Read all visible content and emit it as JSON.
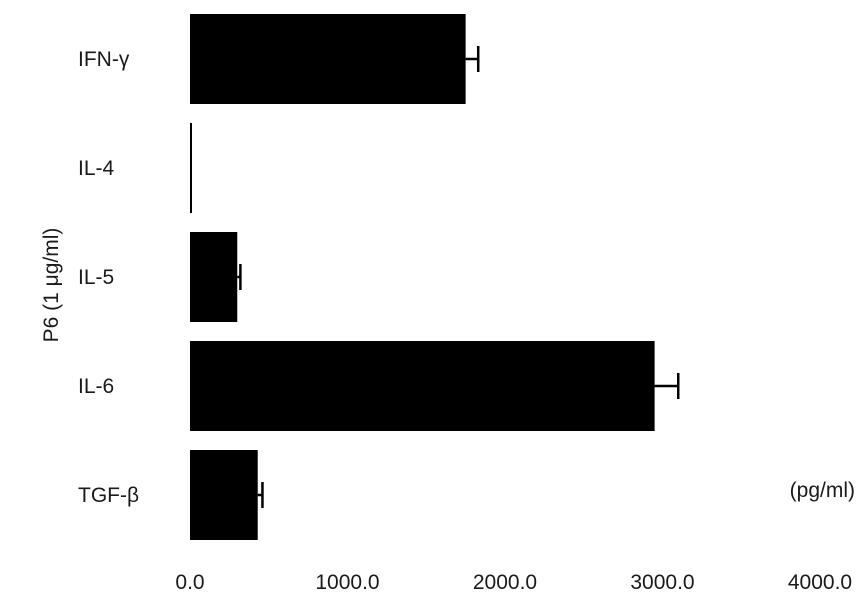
{
  "chart_data": {
    "type": "bar",
    "orientation": "horizontal",
    "categories": [
      "IFN-γ",
      "IL-4",
      "IL-5",
      "IL-6",
      "TGF-β"
    ],
    "values": [
      1750,
      5,
      300,
      2950,
      430
    ],
    "errors": [
      80,
      0,
      20,
      150,
      30
    ],
    "title": "",
    "xlabel": "",
    "ylabel": "P6 (1 μg/ml)",
    "unit_label": "(pg/ml)",
    "xlim": [
      0,
      4000
    ],
    "xticks": [
      "0.0",
      "1000.0",
      "2000.0",
      "3000.0",
      "4000.0"
    ],
    "grid": false,
    "bar_color": "#000000"
  }
}
